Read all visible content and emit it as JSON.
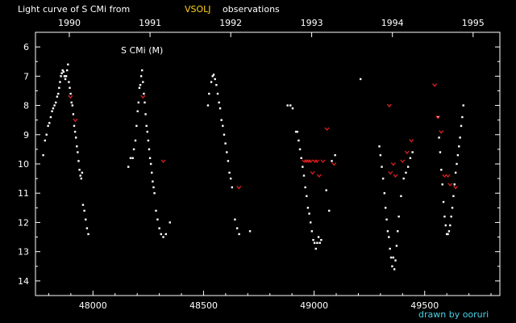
{
  "title_prefix": "Light curve of S CMi from",
  "title_source": "VSOLJ",
  "title_suffix": "observations",
  "star_label": "S CMi (M)",
  "credit": "drawn by ooruri",
  "colors": {
    "background": "#000000",
    "axis": "#ffffff",
    "visual": "#ffffff",
    "limit": "#e02020",
    "source": "#ffd21a",
    "credit": "#4ad3e8"
  },
  "chart_data": {
    "type": "scatter",
    "xlim": [
      47740,
      49840
    ],
    "ylim": [
      14.5,
      5.5
    ],
    "y_inverted": true,
    "xticks": [
      48000,
      48500,
      49000,
      49500
    ],
    "yticks": [
      6,
      7,
      8,
      9,
      10,
      11,
      12,
      13,
      14
    ],
    "year_ticks": [
      {
        "label": "1990",
        "jd": 47893
      },
      {
        "label": "1991",
        "jd": 48258
      },
      {
        "label": "1992",
        "jd": 48623
      },
      {
        "label": "1993",
        "jd": 48989
      },
      {
        "label": "1994",
        "jd": 49354
      },
      {
        "label": "1995",
        "jd": 49719
      }
    ],
    "series": [
      {
        "kind": "visual",
        "points": [
          [
            47775,
            9.7
          ],
          [
            47783,
            9.2
          ],
          [
            47790,
            9.0
          ],
          [
            47797,
            8.7
          ],
          [
            47803,
            8.6
          ],
          [
            47809,
            8.4
          ],
          [
            47815,
            8.2
          ],
          [
            47820,
            8.1
          ],
          [
            47826,
            8.0
          ],
          [
            47832,
            7.9
          ],
          [
            47838,
            7.7
          ],
          [
            47843,
            7.6
          ],
          [
            47847,
            7.4
          ],
          [
            47851,
            7.2
          ],
          [
            47855,
            7.0
          ],
          [
            47859,
            6.9
          ],
          [
            47863,
            6.8
          ],
          [
            47867,
            6.85
          ],
          [
            47871,
            7.0
          ],
          [
            47875,
            7.1
          ],
          [
            47879,
            7.0
          ],
          [
            47883,
            6.8
          ],
          [
            47887,
            6.6
          ],
          [
            47891,
            7.2
          ],
          [
            47895,
            7.4
          ],
          [
            47899,
            7.6
          ],
          [
            47903,
            7.9
          ],
          [
            47907,
            8.0
          ],
          [
            47911,
            8.3
          ],
          [
            47915,
            8.7
          ],
          [
            47919,
            8.9
          ],
          [
            47923,
            9.1
          ],
          [
            47927,
            9.4
          ],
          [
            47931,
            9.6
          ],
          [
            47935,
            9.9
          ],
          [
            47939,
            10.2
          ],
          [
            47943,
            10.4
          ],
          [
            47947,
            10.5
          ],
          [
            47951,
            10.3
          ],
          [
            47955,
            11.4
          ],
          [
            47961,
            11.6
          ],
          [
            47967,
            11.9
          ],
          [
            47973,
            12.2
          ],
          [
            47979,
            12.4
          ],
          [
            48160,
            10.1
          ],
          [
            48170,
            9.8
          ],
          [
            48180,
            9.8
          ],
          [
            48185,
            9.5
          ],
          [
            48192,
            9.2
          ],
          [
            48197,
            8.7
          ],
          [
            48202,
            8.2
          ],
          [
            48206,
            7.9
          ],
          [
            48210,
            7.4
          ],
          [
            48214,
            7.3
          ],
          [
            48218,
            7.0
          ],
          [
            48222,
            6.8
          ],
          [
            48226,
            7.2
          ],
          [
            48230,
            7.6
          ],
          [
            48234,
            7.9
          ],
          [
            48238,
            8.3
          ],
          [
            48242,
            8.7
          ],
          [
            48246,
            8.9
          ],
          [
            48250,
            9.2
          ],
          [
            48254,
            9.5
          ],
          [
            48258,
            9.8
          ],
          [
            48262,
            10.0
          ],
          [
            48266,
            10.3
          ],
          [
            48270,
            10.6
          ],
          [
            48274,
            10.8
          ],
          [
            48278,
            11.0
          ],
          [
            48285,
            11.6
          ],
          [
            48292,
            11.9
          ],
          [
            48300,
            12.2
          ],
          [
            48308,
            12.4
          ],
          [
            48318,
            12.5
          ],
          [
            48330,
            12.4
          ],
          [
            48348,
            12.0
          ],
          [
            48520,
            8.0
          ],
          [
            48525,
            7.6
          ],
          [
            48535,
            7.2
          ],
          [
            48541,
            7.0
          ],
          [
            48546,
            6.95
          ],
          [
            48552,
            7.1
          ],
          [
            48558,
            7.3
          ],
          [
            48564,
            7.6
          ],
          [
            48570,
            7.9
          ],
          [
            48575,
            8.1
          ],
          [
            48581,
            8.5
          ],
          [
            48587,
            8.7
          ],
          [
            48593,
            9.0
          ],
          [
            48599,
            9.3
          ],
          [
            48605,
            9.6
          ],
          [
            48611,
            9.9
          ],
          [
            48617,
            10.3
          ],
          [
            48623,
            10.5
          ],
          [
            48629,
            10.8
          ],
          [
            48642,
            11.9
          ],
          [
            48652,
            12.2
          ],
          [
            48661,
            12.4
          ],
          [
            48710,
            12.3
          ],
          [
            48880,
            8.0
          ],
          [
            48893,
            8.0
          ],
          [
            48903,
            8.1
          ],
          [
            48918,
            8.9
          ],
          [
            48924,
            8.9
          ],
          [
            48930,
            9.2
          ],
          [
            48936,
            9.5
          ],
          [
            48942,
            9.8
          ],
          [
            48948,
            10.1
          ],
          [
            48954,
            10.4
          ],
          [
            48960,
            10.8
          ],
          [
            48966,
            11.1
          ],
          [
            48972,
            11.5
          ],
          [
            48978,
            11.7
          ],
          [
            48984,
            12.0
          ],
          [
            48990,
            12.3
          ],
          [
            48996,
            12.6
          ],
          [
            49002,
            12.7
          ],
          [
            49008,
            12.9
          ],
          [
            49014,
            12.7
          ],
          [
            49020,
            12.5
          ],
          [
            49026,
            12.7
          ],
          [
            49032,
            12.6
          ],
          [
            49055,
            10.9
          ],
          [
            49068,
            11.6
          ],
          [
            49080,
            9.9
          ],
          [
            49095,
            9.7
          ],
          [
            49210,
            7.1
          ],
          [
            49295,
            9.4
          ],
          [
            49300,
            9.7
          ],
          [
            49306,
            10.1
          ],
          [
            49312,
            10.5
          ],
          [
            49318,
            11.0
          ],
          [
            49323,
            11.5
          ],
          [
            49328,
            11.9
          ],
          [
            49333,
            12.3
          ],
          [
            49338,
            12.5
          ],
          [
            49343,
            12.9
          ],
          [
            49348,
            13.2
          ],
          [
            49353,
            13.5
          ],
          [
            49358,
            13.2
          ],
          [
            49363,
            13.6
          ],
          [
            49368,
            13.3
          ],
          [
            49373,
            12.8
          ],
          [
            49378,
            12.3
          ],
          [
            49383,
            11.8
          ],
          [
            49393,
            11.1
          ],
          [
            49405,
            10.5
          ],
          [
            49415,
            10.3
          ],
          [
            49425,
            10.1
          ],
          [
            49435,
            9.8
          ],
          [
            49445,
            9.6
          ],
          [
            49560,
            8.4
          ],
          [
            49565,
            9.1
          ],
          [
            49570,
            9.6
          ],
          [
            49575,
            10.2
          ],
          [
            49580,
            10.7
          ],
          [
            49585,
            11.3
          ],
          [
            49590,
            11.8
          ],
          [
            49595,
            12.1
          ],
          [
            49600,
            12.4
          ],
          [
            49605,
            12.4
          ],
          [
            49610,
            12.3
          ],
          [
            49615,
            12.1
          ],
          [
            49620,
            11.8
          ],
          [
            49625,
            11.5
          ],
          [
            49630,
            11.1
          ],
          [
            49635,
            10.7
          ],
          [
            49640,
            10.3
          ],
          [
            49645,
            10.0
          ],
          [
            49650,
            9.7
          ],
          [
            49655,
            9.4
          ],
          [
            49660,
            9.1
          ],
          [
            49665,
            8.7
          ],
          [
            49670,
            8.4
          ],
          [
            49675,
            8.0
          ]
        ]
      },
      {
        "kind": "fainter-than",
        "points": [
          [
            47898,
            7.7
          ],
          [
            47920,
            8.5
          ],
          [
            48226,
            7.7
          ],
          [
            48318,
            9.9
          ],
          [
            48660,
            10.8
          ],
          [
            48955,
            9.9
          ],
          [
            48965,
            9.9
          ],
          [
            48975,
            9.9
          ],
          [
            48985,
            9.9
          ],
          [
            48993,
            10.3
          ],
          [
            49003,
            9.9
          ],
          [
            49013,
            9.9
          ],
          [
            49023,
            10.4
          ],
          [
            49040,
            9.9
          ],
          [
            49058,
            8.8
          ],
          [
            49090,
            10.0
          ],
          [
            49340,
            8.0
          ],
          [
            49345,
            10.3
          ],
          [
            49358,
            10.0
          ],
          [
            49368,
            10.4
          ],
          [
            49400,
            9.9
          ],
          [
            49420,
            9.6
          ],
          [
            49440,
            9.2
          ],
          [
            49545,
            7.3
          ],
          [
            49560,
            8.4
          ],
          [
            49575,
            8.9
          ],
          [
            49590,
            10.4
          ],
          [
            49605,
            10.4
          ],
          [
            49615,
            10.7
          ],
          [
            49640,
            10.8
          ]
        ]
      }
    ]
  }
}
